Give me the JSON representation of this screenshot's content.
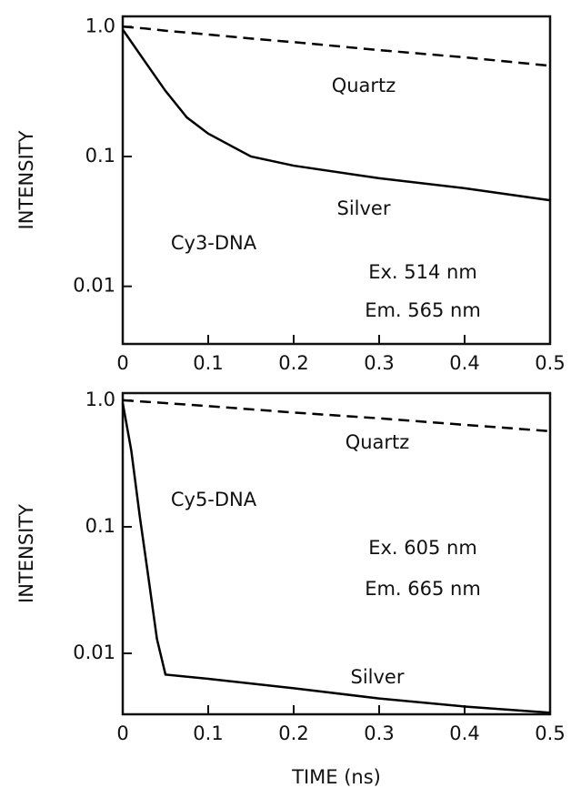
{
  "chart_data": [
    {
      "type": "line",
      "y_label": "INTENSITY",
      "log_y": true,
      "x": [
        0,
        0.025,
        0.05,
        0.075,
        0.1,
        0.15,
        0.2,
        0.3,
        0.4,
        0.5
      ],
      "series": [
        {
          "name": "Quartz",
          "color": "#000000",
          "style": "dashed",
          "values": [
            1.0,
            0.97,
            0.93,
            0.9,
            0.87,
            0.81,
            0.76,
            0.66,
            0.58,
            0.5
          ]
        },
        {
          "name": "Silver",
          "color": "#000000",
          "style": "solid",
          "values": [
            0.95,
            0.55,
            0.32,
            0.2,
            0.15,
            0.1,
            0.085,
            0.068,
            0.057,
            0.046
          ]
        }
      ],
      "annotations": [
        "Cy3-DNA",
        "Ex. 514 nm",
        "Em. 565 nm"
      ],
      "xlim": [
        0,
        0.5
      ],
      "xticks": [
        0,
        0.1,
        0.2,
        0.3,
        0.4,
        0.5
      ],
      "ylim": [
        0.0036,
        1.2
      ],
      "yticks": [
        {
          "value": 1,
          "label": "1.0"
        },
        0.1,
        0.01
      ]
    },
    {
      "type": "line",
      "y_label": "INTENSITY",
      "x_label": "TIME (ns)",
      "log_y": true,
      "x": [
        0,
        0.01,
        0.02,
        0.03,
        0.04,
        0.05,
        0.1,
        0.2,
        0.3,
        0.4,
        0.5
      ],
      "series": [
        {
          "name": "Quartz",
          "color": "#000000",
          "style": "dashed",
          "values": [
            1.0,
            0.99,
            0.98,
            0.97,
            0.96,
            0.95,
            0.9,
            0.8,
            0.72,
            0.64,
            0.57
          ]
        },
        {
          "name": "Silver",
          "color": "#000000",
          "style": "solid",
          "values": [
            0.95,
            0.4,
            0.12,
            0.04,
            0.013,
            0.0068,
            0.0063,
            0.0053,
            0.0044,
            0.0038,
            0.0034
          ]
        }
      ],
      "annotations": [
        "Cy5-DNA",
        "Ex. 605 nm",
        "Em. 665 nm"
      ],
      "xlim": [
        0,
        0.5
      ],
      "xticks": [
        0,
        0.1,
        0.2,
        0.3,
        0.4,
        0.5
      ],
      "ylim": [
        0.0033,
        1.14
      ],
      "yticks": [
        {
          "value": 1,
          "label": "1.0"
        },
        0.1,
        0.01
      ]
    }
  ]
}
